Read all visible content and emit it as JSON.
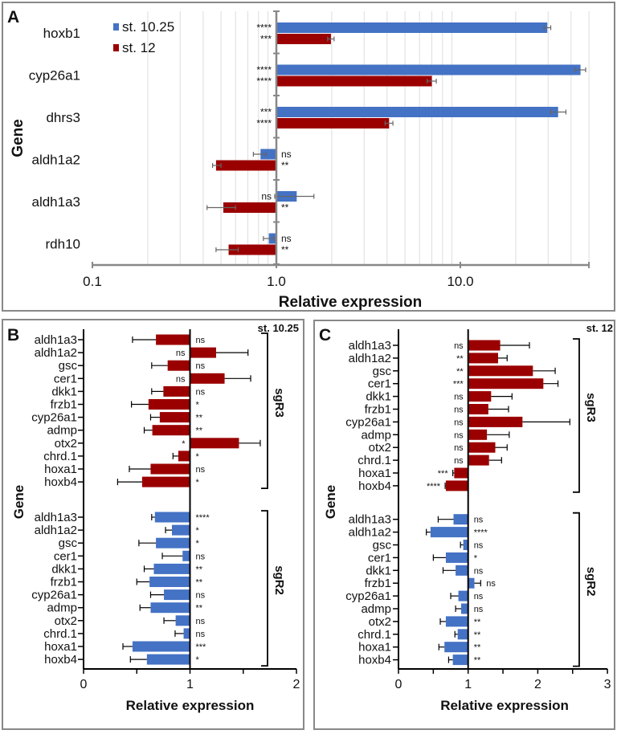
{
  "colors": {
    "st1025": "#4472c4",
    "st12": "#9b0000",
    "sgR2": "#4472c4",
    "sgR3": "#9b0000"
  },
  "chart_data": [
    {
      "panel": "A",
      "type": "bar",
      "orientation": "horizontal",
      "xscale": "log",
      "xlim": [
        0.1,
        50
      ],
      "xticks": [
        "0.1",
        "1.0",
        "10.0"
      ],
      "xlabel": "Relative expression",
      "ylabel": "Gene",
      "legend": {
        "position": "top-left",
        "entries": [
          "st. 10.25",
          "st. 12"
        ]
      },
      "grid": true,
      "categories": [
        "hoxb1",
        "cyp26a1",
        "dhrs3",
        "aldh1a2",
        "aldh1a3",
        "rdh10"
      ],
      "series": [
        {
          "name": "st. 10.25",
          "values": [
            29.7,
            45,
            34,
            0.82,
            1.29,
            0.91
          ],
          "error": [
            [
              28.5,
              31
            ],
            [
              42,
              48
            ],
            [
              31,
              37.5
            ],
            [
              0.75,
              0.88
            ],
            [
              0.98,
              1.6
            ],
            [
              0.85,
              0.97
            ]
          ],
          "sig": [
            "****",
            "****",
            "***",
            "ns",
            "ns",
            "ns"
          ],
          "sig_side": [
            "left",
            "left",
            "left",
            "right",
            "left",
            "right"
          ]
        },
        {
          "name": "st. 12",
          "values": [
            1.98,
            7.0,
            4.1,
            0.47,
            0.515,
            0.55
          ],
          "error": [
            [
              1.9,
              2.06
            ],
            [
              6.6,
              7.4
            ],
            [
              3.9,
              4.3
            ],
            [
              0.45,
              0.5
            ],
            [
              0.42,
              0.6
            ],
            [
              0.47,
              0.62
            ]
          ],
          "sig": [
            "***",
            "****",
            "****",
            "**",
            "**",
            "**"
          ],
          "sig_side": [
            "left",
            "left",
            "left",
            "right",
            "right",
            "right"
          ]
        }
      ]
    },
    {
      "panel": "B",
      "type": "bar",
      "orientation": "horizontal",
      "stage": "st. 10.25",
      "xlim": [
        0,
        2
      ],
      "xticks": [
        "0",
        "1",
        "2"
      ],
      "xlabel": "Relative expression",
      "ylabel": "Gene",
      "groups": [
        {
          "name": "sgR3",
          "categories": [
            "aldh1a3",
            "aldh1a2",
            "gsc",
            "cer1",
            "dkk1",
            "frzb1",
            "cyp26a1",
            "admp",
            "otx2",
            "chrd.1",
            "hoxa1",
            "hoxb4"
          ],
          "values": [
            0.68,
            1.245,
            0.79,
            1.325,
            0.75,
            0.61,
            0.716,
            0.646,
            1.46,
            0.89,
            0.63,
            0.55
          ],
          "error_end": [
            0.46,
            1.545,
            0.64,
            1.57,
            0.64,
            0.45,
            0.63,
            0.57,
            1.66,
            0.84,
            0.43,
            0.32
          ],
          "sig": [
            "ns",
            "ns",
            "ns",
            "ns",
            "ns",
            "*",
            "**",
            "**",
            "*",
            "*",
            "ns",
            "*"
          ],
          "sig_side": [
            "right",
            "left",
            "right",
            "left",
            "right",
            "right",
            "right",
            "right",
            "left",
            "right",
            "right",
            "right"
          ]
        },
        {
          "name": "sgR2",
          "categories": [
            "aldh1a3",
            "aldh1a2",
            "gsc",
            "cer1",
            "dkk1",
            "frzb1",
            "cyp26a1",
            "admp",
            "otx2",
            "chrd.1",
            "hoxa1",
            "hoxb4"
          ],
          "values": [
            0.67,
            0.83,
            0.68,
            0.93,
            0.66,
            0.62,
            0.755,
            0.63,
            0.865,
            0.94,
            0.46,
            0.595
          ],
          "error_end": [
            0.64,
            0.77,
            0.52,
            0.74,
            0.57,
            0.5,
            0.63,
            0.53,
            0.755,
            0.86,
            0.37,
            0.44
          ],
          "sig": [
            "****",
            "*",
            "*",
            "ns",
            "**",
            "**",
            "ns",
            "**",
            "ns",
            "ns",
            "***",
            "*"
          ],
          "sig_side": [
            "right",
            "right",
            "right",
            "right",
            "right",
            "right",
            "right",
            "right",
            "right",
            "right",
            "right",
            "right"
          ]
        }
      ]
    },
    {
      "panel": "C",
      "type": "bar",
      "orientation": "horizontal",
      "stage": "st. 12",
      "xlim": [
        0,
        3
      ],
      "xticks": [
        "0",
        "1",
        "2",
        "3"
      ],
      "xlabel": "Relative expression",
      "ylabel": "Gene",
      "groups": [
        {
          "name": "sgR3",
          "categories": [
            "aldh1a3",
            "aldh1a2",
            "gsc",
            "cer1",
            "dkk1",
            "frzb1",
            "cyp26a1",
            "admp",
            "otx2",
            "chrd.1",
            "hoxa1",
            "hoxb4"
          ],
          "values": [
            1.46,
            1.43,
            1.93,
            2.08,
            1.33,
            1.29,
            1.78,
            1.27,
            1.39,
            1.3,
            0.8,
            0.68
          ],
          "error_end": [
            1.88,
            1.56,
            2.25,
            2.29,
            1.63,
            1.58,
            2.46,
            1.59,
            1.56,
            1.48,
            0.78,
            0.67
          ],
          "sig": [
            "ns",
            "**",
            "**",
            "***",
            "ns",
            "ns",
            "ns",
            "ns",
            "ns",
            "ns",
            "***",
            "****"
          ],
          "sig_side": [
            "left",
            "left",
            "left",
            "left",
            "left",
            "left",
            "left",
            "left",
            "left",
            "left",
            "left",
            "left"
          ]
        },
        {
          "name": "sgR2",
          "categories": [
            "aldh1a3",
            "aldh1a2",
            "gsc",
            "cer1",
            "dkk1",
            "frzb1",
            "cyp26a1",
            "admp",
            "otx2",
            "chrd.1",
            "hoxa1",
            "hoxb4"
          ],
          "values": [
            0.79,
            0.46,
            0.93,
            0.68,
            0.82,
            1.09,
            0.86,
            0.9,
            0.68,
            0.85,
            0.66,
            0.78
          ],
          "error_end": [
            0.57,
            0.4,
            0.89,
            0.5,
            0.64,
            1.18,
            0.75,
            0.82,
            0.6,
            0.81,
            0.58,
            0.72
          ],
          "sig": [
            "ns",
            "****",
            "ns",
            "*",
            "ns",
            "ns",
            "ns",
            "ns",
            "**",
            "**",
            "**",
            "**"
          ],
          "sig_side": [
            "right",
            "right",
            "right",
            "right",
            "right",
            "right",
            "right",
            "right",
            "right",
            "right",
            "right",
            "right"
          ]
        }
      ]
    }
  ]
}
